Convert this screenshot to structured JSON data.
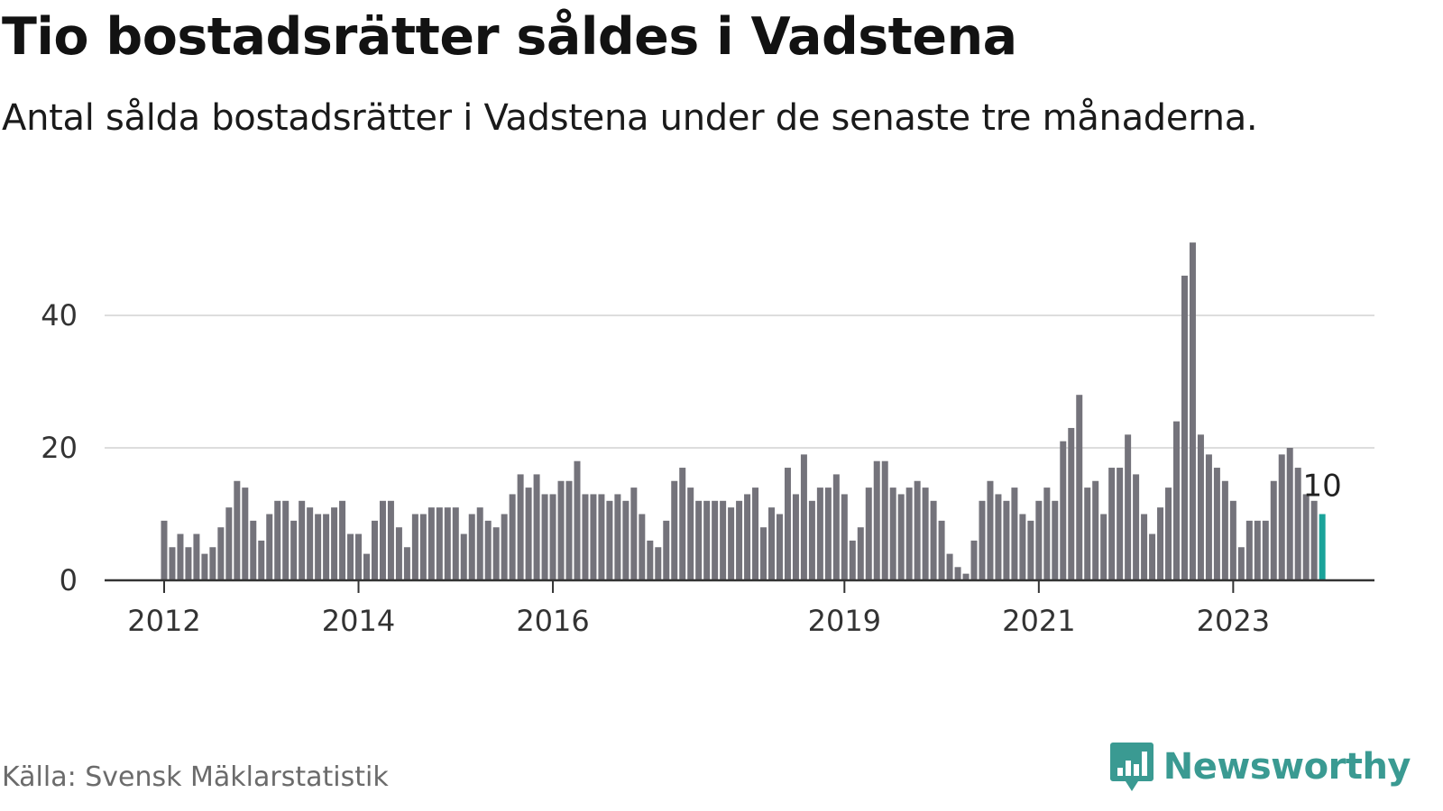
{
  "header": {
    "title": "Tio bostadsrätter såldes i Vadstena",
    "subtitle": "Antal sålda bostadsrätter i Vadstena under de senaste tre månaderna."
  },
  "footer": {
    "source": "Källa: Svensk Mäklarstatistik",
    "brand": "Newsworthy"
  },
  "colors": {
    "bar": "#74737b",
    "highlight": "#1aa39a",
    "grid": "#dddddd",
    "axis": "#333333",
    "brand": "#3a9a92"
  },
  "icons": {
    "brand_logo": "bar-chart-speech-bubble-icon"
  },
  "chart_data": {
    "type": "bar",
    "title": "Tio bostadsrätter såldes i Vadstena",
    "subtitle": "Antal sålda bostadsrätter i Vadstena under de senaste tre månaderna.",
    "xlabel": "",
    "ylabel": "",
    "start_month": "2012-01",
    "ylim": [
      0,
      52
    ],
    "y_ticks": [
      0,
      20,
      40
    ],
    "x_ticks": [
      "2012",
      "2014",
      "2016",
      "2019",
      "2021",
      "2023"
    ],
    "grid": true,
    "highlight_label": "10",
    "values": [
      9,
      5,
      7,
      5,
      7,
      4,
      5,
      8,
      11,
      15,
      14,
      9,
      6,
      10,
      12,
      12,
      9,
      12,
      11,
      10,
      10,
      11,
      12,
      7,
      7,
      4,
      9,
      12,
      12,
      8,
      5,
      10,
      10,
      11,
      11,
      11,
      11,
      7,
      10,
      11,
      9,
      8,
      10,
      13,
      16,
      14,
      16,
      13,
      13,
      15,
      15,
      18,
      13,
      13,
      13,
      12,
      13,
      12,
      14,
      10,
      6,
      5,
      9,
      15,
      17,
      14,
      12,
      12,
      12,
      12,
      11,
      12,
      13,
      14,
      8,
      11,
      10,
      17,
      13,
      19,
      12,
      14,
      14,
      16,
      13,
      6,
      8,
      14,
      18,
      18,
      14,
      13,
      14,
      15,
      14,
      12,
      9,
      4,
      2,
      1,
      6,
      12,
      15,
      13,
      12,
      14,
      10,
      9,
      12,
      14,
      12,
      21,
      23,
      28,
      14,
      15,
      10,
      17,
      17,
      22,
      16,
      10,
      7,
      11,
      14,
      24,
      46,
      51,
      22,
      19,
      17,
      15,
      12,
      5,
      9,
      9,
      9,
      15,
      19,
      20,
      17,
      13,
      12,
      10
    ]
  }
}
